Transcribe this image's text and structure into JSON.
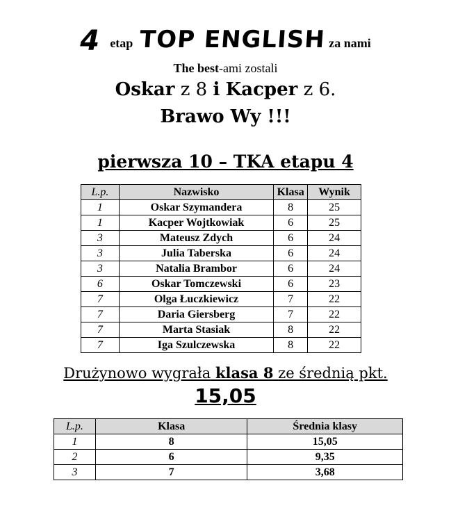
{
  "header": {
    "stage_number": "4",
    "stage_word": "etap",
    "contest_name": "TOP ENGLISH",
    "after": "za nami",
    "best_bold": "The best",
    "best_rest": "-ami zostali",
    "winner1": "Oskar",
    "winner1_class": "z 8",
    "conj": "i",
    "winner2": "Kacper",
    "winner2_class": "z 6.",
    "congrats": "Brawo Wy !!!",
    "top10_title": "pierwsza 10 – TKA etapu 4"
  },
  "top10_table": {
    "headers": [
      "L.p.",
      "Nazwisko",
      "Klasa",
      "Wynik"
    ],
    "rows": [
      [
        "1",
        "Oskar Szymandera",
        "8",
        "25"
      ],
      [
        "1",
        "Kacper Wojtkowiak",
        "6",
        "25"
      ],
      [
        "3",
        "Mateusz Zdych",
        "6",
        "24"
      ],
      [
        "3",
        "Julia Taberska",
        "6",
        "24"
      ],
      [
        "3",
        "Natalia Brambor",
        "6",
        "24"
      ],
      [
        "6",
        "Oskar Tomczewski",
        "6",
        "23"
      ],
      [
        "7",
        "Olga Łuczkiewicz",
        "7",
        "22"
      ],
      [
        "7",
        "Daria Giersberg",
        "7",
        "22"
      ],
      [
        "7",
        "Marta Stasiak",
        "8",
        "22"
      ],
      [
        "7",
        "Iga Szulczewska",
        "8",
        "22"
      ]
    ]
  },
  "team": {
    "pre": "Drużynowo wygrała",
    "bold": "klasa 8",
    "post": "ze średnią pkt.",
    "score": "15,05"
  },
  "class_table": {
    "headers": [
      "L.p.",
      "Klasa",
      "Średnia klasy"
    ],
    "rows": [
      [
        "1",
        "8",
        "15,05"
      ],
      [
        "2",
        "6",
        "9,35"
      ],
      [
        "3",
        "7",
        "3,68"
      ]
    ]
  },
  "colors": {
    "header_bg": "#d9d9d9"
  }
}
